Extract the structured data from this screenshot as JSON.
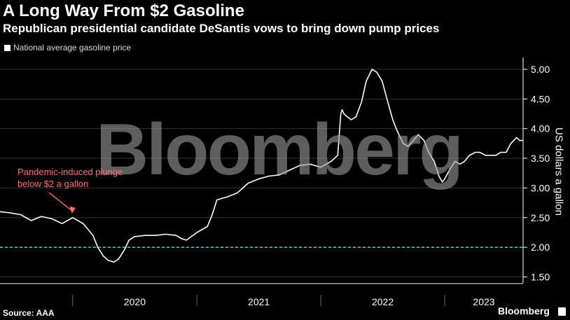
{
  "header": {
    "title": "A Long Way From $2 Gasoline",
    "subtitle": "Republican presidential candidate DeSantis vows to bring down pump prices"
  },
  "footer": {
    "source": "Source: AAA",
    "brand": "Bloomberg"
  },
  "watermark": "Bloomberg",
  "colors": {
    "line": "#ffffff",
    "reference": "#5fd3e8",
    "annotation": "#ff6b7a",
    "grid": "#333333"
  },
  "chart_data": {
    "type": "line",
    "title": "A Long Way From $2 Gasoline",
    "subtitle": "Republican presidential candidate DeSantis vows to bring down pump prices",
    "ylabel": "US dollars a gallon",
    "xlabel": "",
    "ylim": [
      1.4,
      5.2
    ],
    "yticks": [
      1.5,
      2.0,
      2.5,
      3.0,
      3.5,
      4.0,
      4.5,
      5.0
    ],
    "ytick_labels": [
      "1.50",
      "2.00",
      "2.50",
      "3.00",
      "3.50",
      "4.00",
      "4.50",
      "5.00"
    ],
    "xlim": [
      "2019-06-01",
      "2023-08-20"
    ],
    "x_year_labels": [
      "2020",
      "2021",
      "2022",
      "2023"
    ],
    "reference_line": {
      "y": 2.0,
      "style": "dashed"
    },
    "grid": "horizontal",
    "legend": {
      "position": "top-left",
      "entries": [
        "National average gasoline price"
      ]
    },
    "annotation": {
      "text": [
        "Pandemic-induced plunge",
        "below $2 a gallon"
      ],
      "arrow_to": [
        "2020-01-01",
        2.57
      ]
    },
    "series": [
      {
        "name": "National average gasoline price",
        "x": [
          "2019-06-01",
          "2019-07-01",
          "2019-08-01",
          "2019-09-01",
          "2019-10-01",
          "2019-11-01",
          "2019-12-01",
          "2020-01-01",
          "2020-02-01",
          "2020-03-01",
          "2020-03-15",
          "2020-04-01",
          "2020-04-15",
          "2020-05-01",
          "2020-05-15",
          "2020-06-01",
          "2020-06-15",
          "2020-07-01",
          "2020-08-01",
          "2020-09-01",
          "2020-10-01",
          "2020-11-01",
          "2020-11-15",
          "2020-12-01",
          "2021-01-01",
          "2021-02-01",
          "2021-02-15",
          "2021-03-01",
          "2021-04-01",
          "2021-05-01",
          "2021-06-01",
          "2021-07-01",
          "2021-08-01",
          "2021-09-01",
          "2021-10-01",
          "2021-11-01",
          "2021-12-01",
          "2022-01-01",
          "2022-02-01",
          "2022-02-20",
          "2022-03-01",
          "2022-03-05",
          "2022-03-10",
          "2022-03-20",
          "2022-04-01",
          "2022-04-15",
          "2022-05-01",
          "2022-05-15",
          "2022-06-01",
          "2022-06-15",
          "2022-07-01",
          "2022-07-15",
          "2022-08-01",
          "2022-08-15",
          "2022-09-01",
          "2022-09-15",
          "2022-10-01",
          "2022-10-15",
          "2022-11-01",
          "2022-11-15",
          "2022-12-01",
          "2022-12-15",
          "2022-12-25",
          "2023-01-01",
          "2023-01-15",
          "2023-02-01",
          "2023-02-15",
          "2023-03-01",
          "2023-03-15",
          "2023-04-01",
          "2023-04-15",
          "2023-05-01",
          "2023-05-15",
          "2023-06-01",
          "2023-06-15",
          "2023-07-01",
          "2023-07-15",
          "2023-08-01",
          "2023-08-10",
          "2023-08-20"
        ],
        "y": [
          2.6,
          2.58,
          2.55,
          2.45,
          2.52,
          2.48,
          2.4,
          2.5,
          2.4,
          2.2,
          2.0,
          1.85,
          1.78,
          1.75,
          1.8,
          1.95,
          2.12,
          2.18,
          2.2,
          2.2,
          2.22,
          2.2,
          2.15,
          2.12,
          2.25,
          2.35,
          2.55,
          2.8,
          2.85,
          2.92,
          3.08,
          3.15,
          3.2,
          3.22,
          3.3,
          3.38,
          3.4,
          3.35,
          3.45,
          3.55,
          4.25,
          4.32,
          4.25,
          4.2,
          4.15,
          4.2,
          4.45,
          4.8,
          5.0,
          4.95,
          4.8,
          4.5,
          4.15,
          3.95,
          3.75,
          3.7,
          3.8,
          3.9,
          3.8,
          3.6,
          3.45,
          3.2,
          3.1,
          3.15,
          3.3,
          3.45,
          3.4,
          3.45,
          3.55,
          3.6,
          3.6,
          3.55,
          3.55,
          3.55,
          3.6,
          3.6,
          3.75,
          3.85,
          3.8,
          3.8
        ]
      }
    ]
  }
}
